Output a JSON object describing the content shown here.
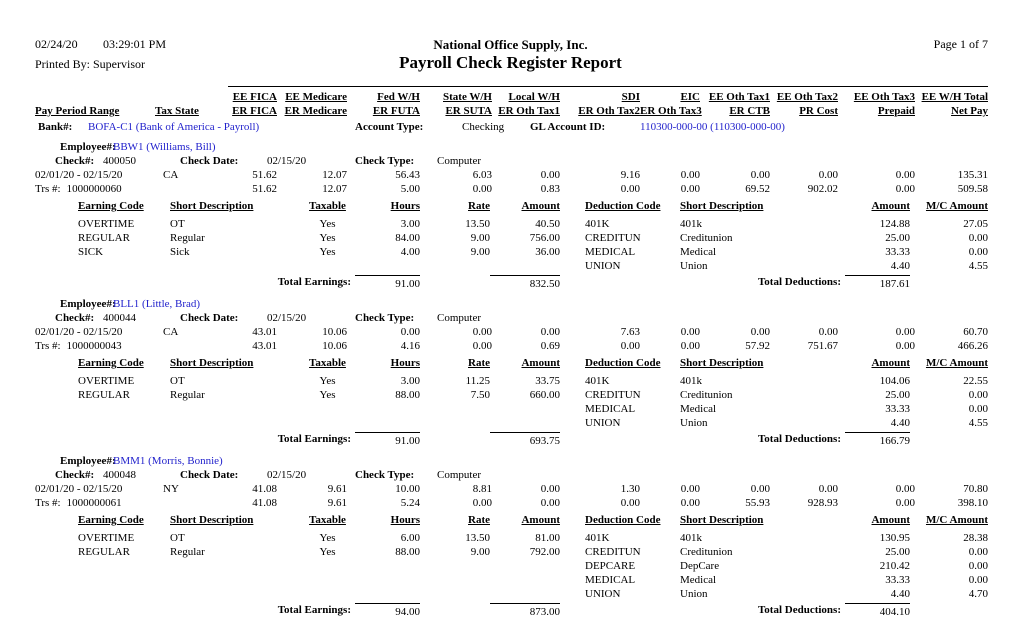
{
  "colors": {
    "link": "#2222cc"
  },
  "header": {
    "date": "02/24/20",
    "time": "03:29:01 PM",
    "printed_by": "Printed By: Supervisor",
    "company": "National Office Supply, Inc.",
    "title": "Payroll Check Register Report",
    "page": "Page 1 of 7"
  },
  "columns": {
    "top": [
      "EE FICA",
      "EE Medicare",
      "Fed W/H",
      "State W/H",
      "Local W/H",
      "SDI",
      "EIC",
      "EE Oth Tax1",
      "EE Oth Tax2",
      "EE Oth Tax3",
      "EE W/H Total"
    ],
    "bottom_left": [
      "Pay Period Range",
      "Tax State"
    ],
    "bottom": [
      "ER FICA",
      "ER Medicare",
      "ER FUTA",
      "ER SUTA",
      "ER Oth Tax1",
      "ER Oth Tax2",
      "ER Oth Tax3",
      "ER CTB",
      "PR Cost",
      "Prepaid",
      "Net Pay"
    ]
  },
  "bank": {
    "label": "Bank#:",
    "value": "BOFA-C1 (Bank of America - Payroll)",
    "account_type_label": "Account Type:",
    "account_type": "Checking",
    "gl_label": "GL Account ID:",
    "gl_value": "110300-000-00 (110300-000-00)"
  },
  "labels": {
    "employee": "Employee#:",
    "check": "Check#:",
    "check_date": "Check Date:",
    "check_type": "Check Type:",
    "trs": "Trs #:",
    "total_earnings": "Total Earnings:",
    "total_deductions": "Total Deductions:"
  },
  "earnings_headers": [
    "Earning Code",
    "Short Description",
    "Taxable",
    "Hours",
    "Rate",
    "Amount",
    "Deduction Code",
    "Short Description",
    "Amount",
    "M/C Amount"
  ],
  "employees": [
    {
      "id": "BBW1 (Williams, Bill)",
      "check_no": "400050",
      "check_date": "02/15/20",
      "check_type": "Computer",
      "pay_period": "02/01/20 - 02/15/20",
      "tax_state": "CA",
      "trs": "1000000060",
      "row1": [
        "51.62",
        "12.07",
        "56.43",
        "6.03",
        "0.00",
        "9.16",
        "0.00",
        "0.00",
        "0.00",
        "0.00",
        "135.31"
      ],
      "row2": [
        "51.62",
        "12.07",
        "5.00",
        "0.00",
        "0.83",
        "0.00",
        "0.00",
        "69.52",
        "902.02",
        "0.00",
        "509.58"
      ],
      "earnings": [
        {
          "code": "OVERTIME",
          "desc": "OT",
          "taxable": "Yes",
          "hours": "3.00",
          "rate": "13.50",
          "amount": "40.50"
        },
        {
          "code": "REGULAR",
          "desc": "Regular",
          "taxable": "Yes",
          "hours": "84.00",
          "rate": "9.00",
          "amount": "756.00"
        },
        {
          "code": "SICK",
          "desc": "Sick",
          "taxable": "Yes",
          "hours": "4.00",
          "rate": "9.00",
          "amount": "36.00"
        }
      ],
      "deductions": [
        {
          "code": "401K",
          "desc": "401k",
          "amount": "124.88",
          "mc": "27.05"
        },
        {
          "code": "CREDITUN",
          "desc": "Creditunion",
          "amount": "25.00",
          "mc": "0.00"
        },
        {
          "code": "MEDICAL",
          "desc": "Medical",
          "amount": "33.33",
          "mc": "0.00"
        },
        {
          "code": "UNION",
          "desc": "Union",
          "amount": "4.40",
          "mc": "4.55"
        }
      ],
      "totals": {
        "hours": "91.00",
        "amount": "832.50",
        "deductions": "187.61"
      }
    },
    {
      "id": "BLL1 (Little, Brad)",
      "check_no": "400044",
      "check_date": "02/15/20",
      "check_type": "Computer",
      "pay_period": "02/01/20 - 02/15/20",
      "tax_state": "CA",
      "trs": "1000000043",
      "row1": [
        "43.01",
        "10.06",
        "0.00",
        "0.00",
        "0.00",
        "7.63",
        "0.00",
        "0.00",
        "0.00",
        "0.00",
        "60.70"
      ],
      "row2": [
        "43.01",
        "10.06",
        "4.16",
        "0.00",
        "0.69",
        "0.00",
        "0.00",
        "57.92",
        "751.67",
        "0.00",
        "466.26"
      ],
      "earnings": [
        {
          "code": "OVERTIME",
          "desc": "OT",
          "taxable": "Yes",
          "hours": "3.00",
          "rate": "11.25",
          "amount": "33.75"
        },
        {
          "code": "REGULAR",
          "desc": "Regular",
          "taxable": "Yes",
          "hours": "88.00",
          "rate": "7.50",
          "amount": "660.00"
        }
      ],
      "deductions": [
        {
          "code": "401K",
          "desc": "401k",
          "amount": "104.06",
          "mc": "22.55"
        },
        {
          "code": "CREDITUN",
          "desc": "Creditunion",
          "amount": "25.00",
          "mc": "0.00"
        },
        {
          "code": "MEDICAL",
          "desc": "Medical",
          "amount": "33.33",
          "mc": "0.00"
        },
        {
          "code": "UNION",
          "desc": "Union",
          "amount": "4.40",
          "mc": "4.55"
        }
      ],
      "totals": {
        "hours": "91.00",
        "amount": "693.75",
        "deductions": "166.79"
      }
    },
    {
      "id": "BMM1 (Morris, Bonnie)",
      "check_no": "400048",
      "check_date": "02/15/20",
      "check_type": "Computer",
      "pay_period": "02/01/20 - 02/15/20",
      "tax_state": "NY",
      "trs": "1000000061",
      "row1": [
        "41.08",
        "9.61",
        "10.00",
        "8.81",
        "0.00",
        "1.30",
        "0.00",
        "0.00",
        "0.00",
        "0.00",
        "70.80"
      ],
      "row2": [
        "41.08",
        "9.61",
        "5.24",
        "0.00",
        "0.00",
        "0.00",
        "0.00",
        "55.93",
        "928.93",
        "0.00",
        "398.10"
      ],
      "earnings": [
        {
          "code": "OVERTIME",
          "desc": "OT",
          "taxable": "Yes",
          "hours": "6.00",
          "rate": "13.50",
          "amount": "81.00"
        },
        {
          "code": "REGULAR",
          "desc": "Regular",
          "taxable": "Yes",
          "hours": "88.00",
          "rate": "9.00",
          "amount": "792.00"
        }
      ],
      "deductions": [
        {
          "code": "401K",
          "desc": "401k",
          "amount": "130.95",
          "mc": "28.38"
        },
        {
          "code": "CREDITUN",
          "desc": "Creditunion",
          "amount": "25.00",
          "mc": "0.00"
        },
        {
          "code": "DEPCARE",
          "desc": "DepCare",
          "amount": "210.42",
          "mc": "0.00"
        },
        {
          "code": "MEDICAL",
          "desc": "Medical",
          "amount": "33.33",
          "mc": "0.00"
        },
        {
          "code": "UNION",
          "desc": "Union",
          "amount": "4.40",
          "mc": "4.70"
        }
      ],
      "totals": {
        "hours": "94.00",
        "amount": "873.00",
        "deductions": "404.10"
      }
    }
  ]
}
